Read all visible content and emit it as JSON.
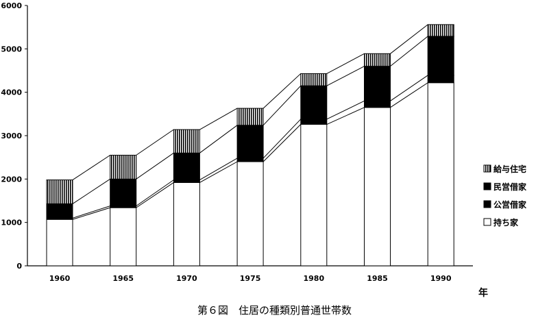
{
  "chart_data": {
    "type": "bar",
    "stacked": true,
    "categories": [
      "1960",
      "1965",
      "1970",
      "1975",
      "1980",
      "1985",
      "1990"
    ],
    "series": [
      {
        "name": "持ち家",
        "values": [
          1070,
          1340,
          1920,
          2400,
          3260,
          3650,
          4220
        ],
        "pattern": "white"
      },
      {
        "name": "公営借家",
        "values": [
          30,
          40,
          60,
          80,
          120,
          150,
          170
        ],
        "pattern": "black"
      },
      {
        "name": "民営借家",
        "values": [
          330,
          620,
          620,
          760,
          770,
          800,
          900
        ],
        "pattern": "black"
      },
      {
        "name": "給与住宅",
        "values": [
          550,
          550,
          540,
          390,
          280,
          290,
          270
        ],
        "pattern": "vertical-hatch"
      }
    ],
    "legend_order": [
      "給与住宅",
      "民営借家",
      "公営借家",
      "持ち家"
    ],
    "legend_position": "right",
    "ylim": [
      0,
      6000
    ],
    "yticks": [
      0,
      1000,
      2000,
      3000,
      4000,
      5000,
      6000
    ],
    "x_unit": "年",
    "grid": false,
    "connector_lines": true
  },
  "caption": "第６図　住居の種類別普通世帯数"
}
